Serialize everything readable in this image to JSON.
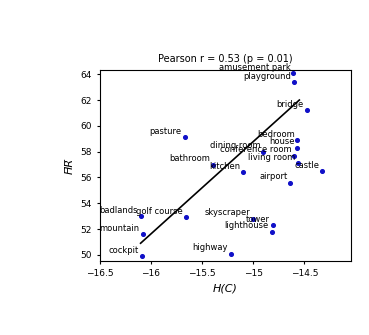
{
  "chart_data": {
    "type": "scatter",
    "title": "Pearson r = 0.53 (p = 0.01)",
    "x_label": "H(C)",
    "y_label": "H̅R̅",
    "color": "#1010c8",
    "labels": [
      "amusement park",
      "playground",
      "bridge",
      "pasture",
      "bedroom",
      "house",
      "dining room",
      "conference room",
      "living room",
      "bathroom",
      "kitchen",
      "castle",
      "airport",
      "golf course",
      "badlands",
      "skyscraper",
      "tower",
      "lighthouse",
      "mountain",
      "highway",
      "cockpit"
    ],
    "x": [
      -14.61,
      -14.6,
      -14.48,
      -15.67,
      -14.57,
      -14.57,
      -14.9,
      -14.6,
      -14.56,
      -15.39,
      -15.1,
      -14.33,
      -14.64,
      -15.66,
      -16.1,
      -15.0,
      -14.81,
      -14.82,
      -16.08,
      -15.22,
      -16.09
    ],
    "values": [
      64.1,
      63.4,
      61.2,
      59.1,
      58.9,
      58.3,
      58.0,
      57.7,
      57.1,
      57.0,
      56.4,
      56.5,
      55.6,
      52.9,
      53.0,
      52.8,
      52.3,
      51.8,
      51.6,
      50.1,
      49.9
    ],
    "fit_line": {
      "x": [
        -16.1,
        -14.55
      ],
      "y": [
        50.9,
        62.0
      ],
      "color": "#000000"
    },
    "xlim": [
      -16.5,
      -14.05
    ],
    "ylim": [
      49.5,
      64.3
    ],
    "xticks": [
      {
        "value": -16.5,
        "label": "−16.5"
      },
      {
        "value": -16,
        "label": "−16"
      },
      {
        "value": -15.5,
        "label": "−15.5"
      },
      {
        "value": -15,
        "label": "−15"
      },
      {
        "value": -14.5,
        "label": "−14.5"
      }
    ],
    "yticks": [
      50,
      52,
      54,
      56,
      58,
      60,
      62,
      64
    ],
    "grid": false
  }
}
